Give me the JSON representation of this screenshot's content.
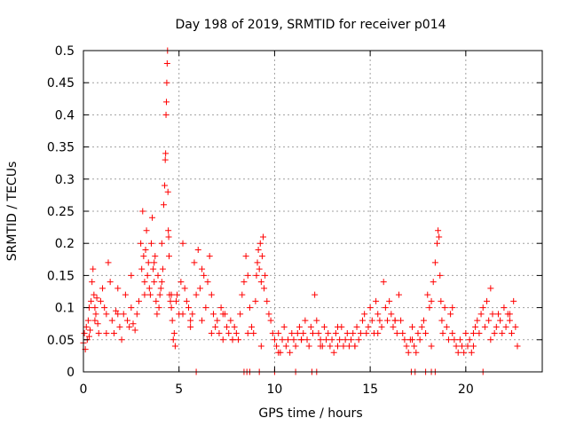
{
  "chart_data": {
    "type": "scatter",
    "title": "Day 198 of 2019, SRMTID for receiver p014",
    "xlabel": "GPS time / hours",
    "ylabel": "SRMTID / TECUs",
    "xlim": [
      0,
      24
    ],
    "ylim": [
      0,
      0.5
    ],
    "x_ticks": [
      0,
      5,
      10,
      15,
      20
    ],
    "x_tick_labels": [
      "0",
      "5",
      "10",
      "15",
      "20"
    ],
    "y_ticks": [
      0,
      0.05,
      0.1,
      0.15,
      0.2,
      0.25,
      0.3,
      0.35,
      0.4,
      0.45,
      0.5
    ],
    "y_tick_labels": [
      "0",
      "0.05",
      "0.1",
      "0.15",
      "0.2",
      "0.25",
      "0.3",
      "0.35",
      "0.4",
      "0.45",
      "0.5"
    ],
    "grid": true,
    "marker": "+",
    "color": "#ff0000",
    "series": [
      {
        "name": "SRMTID",
        "x": [
          0.0,
          0.05,
          0.1,
          0.15,
          0.2,
          0.25,
          0.3,
          0.35,
          0.4,
          0.45,
          0.5,
          0.55,
          0.6,
          0.65,
          0.7,
          0.75,
          0.8,
          0.9,
          1.0,
          1.1,
          1.2,
          1.3,
          1.4,
          1.5,
          1.6,
          1.7,
          1.8,
          1.9,
          2.0,
          2.1,
          2.2,
          2.3,
          2.4,
          2.5,
          2.6,
          2.7,
          2.8,
          2.9,
          3.0,
          3.05,
          3.1,
          3.15,
          3.2,
          3.25,
          3.3,
          3.35,
          3.4,
          3.45,
          3.5,
          3.55,
          3.6,
          3.65,
          3.7,
          3.75,
          3.8,
          3.85,
          3.9,
          3.95,
          4.0,
          4.05,
          4.1,
          4.15,
          4.2,
          4.25,
          4.28,
          4.3,
          4.32,
          4.34,
          4.36,
          4.38,
          4.4,
          4.42,
          4.44,
          4.46,
          4.48,
          4.5,
          4.55,
          4.6,
          4.65,
          4.7,
          4.75,
          4.8,
          4.85,
          4.9,
          5.0,
          5.1,
          5.2,
          5.3,
          5.4,
          5.5,
          5.6,
          5.7,
          5.8,
          5.9,
          6.0,
          6.1,
          6.2,
          6.3,
          6.4,
          6.5,
          6.6,
          6.7,
          6.8,
          6.9,
          7.0,
          7.1,
          7.2,
          7.3,
          7.4,
          7.5,
          7.6,
          7.7,
          7.8,
          7.9,
          8.0,
          8.1,
          8.2,
          8.3,
          8.4,
          8.5,
          8.6,
          8.7,
          8.8,
          8.9,
          9.0,
          9.05,
          9.1,
          9.15,
          9.2,
          9.25,
          9.3,
          9.35,
          9.4,
          9.45,
          9.5,
          9.6,
          9.7,
          9.8,
          9.9,
          10.0,
          10.1,
          10.2,
          10.3,
          10.4,
          10.5,
          10.6,
          10.7,
          10.8,
          10.9,
          11.0,
          11.1,
          11.2,
          11.3,
          11.4,
          11.5,
          11.6,
          11.7,
          11.8,
          11.9,
          12.0,
          12.1,
          12.2,
          12.3,
          12.4,
          12.5,
          12.6,
          12.7,
          12.8,
          12.9,
          13.0,
          13.1,
          13.2,
          13.3,
          13.4,
          13.5,
          13.6,
          13.7,
          13.8,
          13.9,
          14.0,
          14.1,
          14.2,
          14.3,
          14.4,
          14.5,
          14.6,
          14.7,
          14.8,
          14.9,
          15.0,
          15.1,
          15.2,
          15.3,
          15.4,
          15.5,
          15.6,
          15.7,
          15.8,
          15.9,
          16.0,
          16.1,
          16.2,
          16.3,
          16.4,
          16.5,
          16.6,
          16.7,
          16.8,
          16.9,
          17.0,
          17.1,
          17.2,
          17.3,
          17.4,
          17.5,
          17.6,
          17.7,
          17.8,
          17.9,
          18.0,
          18.1,
          18.2,
          18.3,
          18.4,
          18.5,
          18.55,
          18.6,
          18.65,
          18.7,
          18.75,
          18.8,
          18.9,
          19.0,
          19.1,
          19.2,
          19.3,
          19.4,
          19.5,
          19.6,
          19.7,
          19.8,
          19.9,
          20.0,
          20.1,
          20.2,
          20.3,
          20.4,
          20.5,
          20.6,
          20.7,
          20.8,
          20.9,
          21.0,
          21.1,
          21.2,
          21.3,
          21.4,
          21.5,
          21.6,
          21.7,
          21.8,
          21.9,
          22.0,
          22.1,
          22.2,
          22.3,
          22.4,
          22.5,
          22.6,
          22.7,
          0.3,
          0.6,
          1.2,
          1.8,
          2.5,
          3.2,
          3.7,
          4.1,
          4.6,
          5.2,
          5.6,
          6.2,
          6.7,
          7.3,
          7.8,
          8.6,
          9.3,
          10.2,
          11.4,
          12.4,
          13.3,
          14.2,
          15.4,
          16.3,
          17.2,
          18.2,
          19.3,
          20.4,
          21.3,
          22.3,
          5.9,
          8.4,
          8.55,
          8.7,
          9.2,
          10.0,
          11.1,
          11.95,
          12.2,
          17.15,
          17.35,
          17.9,
          18.2,
          18.4,
          20.9
        ],
        "y": [
          0.045,
          0.06,
          0.035,
          0.07,
          0.05,
          0.08,
          0.055,
          0.065,
          0.11,
          0.14,
          0.16,
          0.12,
          0.1,
          0.09,
          0.115,
          0.075,
          0.06,
          0.11,
          0.13,
          0.1,
          0.09,
          0.17,
          0.14,
          0.08,
          0.06,
          0.095,
          0.13,
          0.07,
          0.05,
          0.09,
          0.12,
          0.08,
          0.07,
          0.1,
          0.075,
          0.065,
          0.09,
          0.11,
          0.2,
          0.16,
          0.25,
          0.18,
          0.14,
          0.19,
          0.22,
          0.15,
          0.17,
          0.13,
          0.12,
          0.2,
          0.24,
          0.16,
          0.14,
          0.18,
          0.11,
          0.09,
          0.15,
          0.1,
          0.12,
          0.13,
          0.2,
          0.16,
          0.26,
          0.29,
          0.33,
          0.34,
          0.4,
          0.42,
          0.45,
          0.48,
          0.5,
          0.28,
          0.22,
          0.21,
          0.18,
          0.12,
          0.11,
          0.1,
          0.08,
          0.05,
          0.06,
          0.04,
          0.11,
          0.12,
          0.09,
          0.14,
          0.2,
          0.13,
          0.11,
          0.1,
          0.08,
          0.09,
          0.17,
          0.12,
          0.19,
          0.13,
          0.16,
          0.15,
          0.1,
          0.14,
          0.18,
          0.12,
          0.09,
          0.07,
          0.08,
          0.06,
          0.1,
          0.05,
          0.09,
          0.07,
          0.06,
          0.08,
          0.05,
          0.07,
          0.06,
          0.05,
          0.09,
          0.12,
          0.14,
          0.18,
          0.15,
          0.1,
          0.07,
          0.06,
          0.11,
          0.15,
          0.17,
          0.19,
          0.16,
          0.2,
          0.14,
          0.18,
          0.21,
          0.13,
          0.15,
          0.11,
          0.09,
          0.08,
          0.06,
          0.05,
          0.04,
          0.06,
          0.03,
          0.05,
          0.07,
          0.04,
          0.05,
          0.03,
          0.06,
          0.05,
          0.04,
          0.06,
          0.07,
          0.05,
          0.06,
          0.08,
          0.05,
          0.04,
          0.07,
          0.06,
          0.12,
          0.08,
          0.06,
          0.05,
          0.04,
          0.07,
          0.05,
          0.06,
          0.04,
          0.05,
          0.03,
          0.06,
          0.04,
          0.05,
          0.07,
          0.04,
          0.05,
          0.06,
          0.04,
          0.05,
          0.06,
          0.04,
          0.07,
          0.05,
          0.06,
          0.08,
          0.09,
          0.06,
          0.07,
          0.1,
          0.08,
          0.06,
          0.11,
          0.09,
          0.08,
          0.07,
          0.14,
          0.1,
          0.08,
          0.11,
          0.09,
          0.07,
          0.08,
          0.06,
          0.12,
          0.08,
          0.06,
          0.05,
          0.04,
          0.03,
          0.05,
          0.07,
          0.04,
          0.03,
          0.06,
          0.05,
          0.07,
          0.08,
          0.06,
          0.12,
          0.1,
          0.11,
          0.14,
          0.17,
          0.2,
          0.22,
          0.21,
          0.15,
          0.11,
          0.08,
          0.06,
          0.1,
          0.07,
          0.05,
          0.09,
          0.06,
          0.05,
          0.04,
          0.03,
          0.05,
          0.04,
          0.03,
          0.06,
          0.04,
          0.05,
          0.03,
          0.04,
          0.07,
          0.08,
          0.06,
          0.09,
          0.1,
          0.07,
          0.11,
          0.08,
          0.13,
          0.09,
          0.06,
          0.07,
          0.09,
          0.08,
          0.06,
          0.1,
          0.07,
          0.09,
          0.08,
          0.06,
          0.11,
          0.07,
          0.04,
          0.1,
          0.08,
          0.06,
          0.09,
          0.15,
          0.12,
          0.17,
          0.14,
          0.12,
          0.09,
          0.07,
          0.08,
          0.06,
          0.09,
          0.05,
          0.06,
          0.04,
          0.03,
          0.05,
          0.04,
          0.07,
          0.04,
          0.06,
          0.08,
          0.05,
          0.04,
          0.1,
          0.06,
          0.05,
          0.09,
          0.0,
          0.0,
          0.0,
          0.0,
          0.0,
          0.0,
          0.0,
          0.0,
          0.0,
          0.0,
          0.0,
          0.0,
          0.0,
          0.0,
          0.0
        ]
      }
    ]
  }
}
